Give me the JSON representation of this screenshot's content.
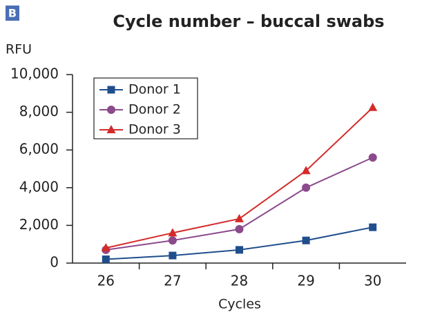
{
  "chart_data": {
    "type": "line",
    "panel_label": "B",
    "title": "Cycle number – buccal swabs",
    "y_label": "RFU",
    "x_label": "Cycles",
    "categories": [
      "26",
      "27",
      "28",
      "29",
      "30"
    ],
    "series": [
      {
        "name": "Donor 1",
        "color": "#1f4e8c",
        "marker": "square",
        "values": [
          200,
          400,
          700,
          1200,
          1900
        ]
      },
      {
        "name": "Donor 2",
        "color": "#8b4a8c",
        "marker": "circle",
        "values": [
          700,
          1200,
          1800,
          4000,
          5600
        ]
      },
      {
        "name": "Donor 3",
        "color": "#d42a2a",
        "marker": "triangle",
        "values": [
          800,
          1600,
          2350,
          4900,
          8250
        ]
      }
    ],
    "ylim": [
      0,
      10000
    ],
    "yticks": [
      0,
      {
        "value": 2000,
        "label": "2,000"
      },
      {
        "value": 4000,
        "label": "4,000"
      },
      {
        "value": 6000,
        "label": "6,000"
      },
      {
        "value": 8000,
        "label": "8,000"
      },
      {
        "value": 10000,
        "label": "10,000"
      }
    ],
    "grid": false,
    "legend": "upper left"
  }
}
